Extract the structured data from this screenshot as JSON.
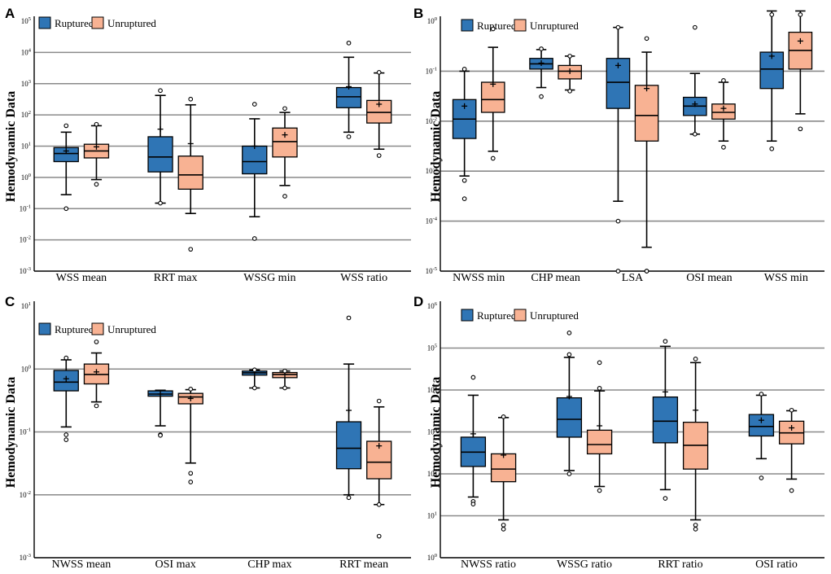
{
  "figure": {
    "colors": {
      "ruptured": "#2f75b5",
      "unruptured": "#f8b293"
    },
    "y_label": "Hemodynamic Data"
  },
  "chart_data": [
    {
      "type": "box",
      "panel": "A",
      "scale": "log10",
      "ylabel": "Hemodynamic Data",
      "y_ticks": [
        -3,
        -2,
        -1,
        0,
        1,
        2,
        3,
        4,
        5
      ],
      "legend": [
        "Ruptured",
        "Unruptured"
      ],
      "categories": [
        "WSS mean",
        "RRT max",
        "WSSG min",
        "WSS ratio"
      ],
      "series": [
        {
          "name": "Ruptured",
          "boxes": [
            {
              "min": 0.28,
              "q1": 3.2,
              "median": 5.8,
              "q3": 9,
              "max": 28,
              "mean": 7,
              "outliers": [
                0.1,
                45
              ]
            },
            {
              "min": 0.15,
              "q1": 1.5,
              "median": 4.5,
              "q3": 20,
              "max": 420,
              "mean": 35,
              "outliers": [
                0.15,
                600
              ]
            },
            {
              "min": 0.055,
              "q1": 1.3,
              "median": 3.2,
              "q3": 10,
              "max": 75,
              "mean": 10,
              "outliers": [
                0.011,
                220
              ]
            },
            {
              "min": 28,
              "q1": 170,
              "median": 380,
              "q3": 750,
              "max": 7000,
              "mean": 800,
              "outliers": [
                20,
                20000
              ]
            }
          ]
        },
        {
          "name": "Unruptured",
          "boxes": [
            {
              "min": 0.85,
              "q1": 4.2,
              "median": 7,
              "q3": 11.5,
              "max": 45,
              "mean": 9.5,
              "outliers": [
                0.6,
                50
              ]
            },
            {
              "min": 0.07,
              "q1": 0.42,
              "median": 1.2,
              "q3": 4.8,
              "max": 210,
              "mean": 12,
              "outliers": [
                0.005,
                320
              ]
            },
            {
              "min": 0.55,
              "q1": 4.5,
              "median": 14,
              "q3": 38,
              "max": 120,
              "mean": 23,
              "outliers": [
                0.25,
                160
              ]
            },
            {
              "min": 8,
              "q1": 55,
              "median": 120,
              "q3": 290,
              "max": 2200,
              "mean": 220,
              "outliers": [
                5,
                2300
              ]
            }
          ]
        }
      ]
    },
    {
      "type": "box",
      "panel": "B",
      "scale": "log10",
      "ylabel": "Hemodynamic Data",
      "y_ticks": [
        -5,
        -4,
        -3,
        -2,
        -1,
        0
      ],
      "legend": [
        "Ruptured",
        "Unruptured"
      ],
      "categories": [
        "NWSS min",
        "CHP mean",
        "LSA",
        "OSI mean",
        "WSS min"
      ],
      "series": [
        {
          "name": "Ruptured",
          "boxes": [
            {
              "min": 0.0008,
              "q1": 0.0045,
              "median": 0.011,
              "q3": 0.027,
              "max": 0.1,
              "mean": 0.02,
              "outliers": [
                0.00065,
                0.00028,
                0.11
              ]
            },
            {
              "min": 0.047,
              "q1": 0.11,
              "median": 0.14,
              "q3": 0.18,
              "max": 0.27,
              "mean": 0.145,
              "outliers": [
                0.031,
                0.28
              ]
            },
            {
              "min": 0.00025,
              "q1": 0.018,
              "median": 0.06,
              "q3": 0.18,
              "max": 0.75,
              "mean": 0.13,
              "outliers": [
                0.0001,
                1e-05,
                0.75
              ]
            },
            {
              "min": 0.0055,
              "q1": 0.013,
              "median": 0.02,
              "q3": 0.03,
              "max": 0.09,
              "mean": 0.022,
              "outliers": [
                0.0055,
                0.75
              ]
            },
            {
              "min": 0.004,
              "q1": 0.045,
              "median": 0.11,
              "q3": 0.24,
              "max": 1.6,
              "mean": 0.2,
              "outliers": [
                0.0028,
                1.6
              ]
            }
          ]
        },
        {
          "name": "Unruptured",
          "boxes": [
            {
              "min": 0.0025,
              "q1": 0.015,
              "median": 0.027,
              "q3": 0.06,
              "max": 0.3,
              "mean": 0.055,
              "outliers": [
                0.0018,
                0.7
              ]
            },
            {
              "min": 0.042,
              "q1": 0.07,
              "median": 0.1,
              "q3": 0.13,
              "max": 0.2,
              "mean": 0.1,
              "outliers": [
                0.04,
                0.2
              ]
            },
            {
              "min": 3e-05,
              "q1": 0.004,
              "median": 0.013,
              "q3": 0.052,
              "max": 0.24,
              "mean": 0.045,
              "outliers": [
                1e-05,
                1e-05,
                0.45
              ]
            },
            {
              "min": 0.004,
              "q1": 0.011,
              "median": 0.015,
              "q3": 0.022,
              "max": 0.06,
              "mean": 0.018,
              "outliers": [
                0.003,
                0.065
              ]
            },
            {
              "min": 0.014,
              "q1": 0.11,
              "median": 0.26,
              "q3": 0.6,
              "max": 1.6,
              "mean": 0.4,
              "outliers": [
                0.007,
                1.6
              ]
            }
          ]
        }
      ]
    },
    {
      "type": "box",
      "panel": "C",
      "scale": "log10",
      "ylabel": "Hemodynamic Data",
      "y_ticks": [
        -3,
        -2,
        -1,
        0,
        1
      ],
      "legend": [
        "Ruptured",
        "Unruptured"
      ],
      "categories": [
        "NWSS mean",
        "OSI max",
        "CHP max",
        "RRT mean"
      ],
      "series": [
        {
          "name": "Ruptured",
          "boxes": [
            {
              "min": 0.12,
              "q1": 0.45,
              "median": 0.62,
              "q3": 0.95,
              "max": 1.4,
              "mean": 0.7,
              "outliers": [
                0.09,
                0.075,
                1.5
              ]
            },
            {
              "min": 0.125,
              "q1": 0.37,
              "median": 0.4,
              "q3": 0.45,
              "max": 0.46,
              "mean": 0.4,
              "outliers": [
                0.09,
                0.088
              ]
            },
            {
              "min": 0.5,
              "q1": 0.8,
              "median": 0.87,
              "q3": 0.93,
              "max": 0.97,
              "mean": 0.87,
              "outliers": [
                0.5,
                0.97
              ]
            },
            {
              "min": 0.01,
              "q1": 0.026,
              "median": 0.055,
              "q3": 0.145,
              "max": 1.2,
              "mean": 0.22,
              "outliers": [
                0.009,
                6.5
              ]
            }
          ]
        },
        {
          "name": "Unruptured",
          "boxes": [
            {
              "min": 0.3,
              "q1": 0.58,
              "median": 0.82,
              "q3": 1.2,
              "max": 1.8,
              "mean": 0.9,
              "outliers": [
                0.26,
                2.7
              ]
            },
            {
              "min": 0.032,
              "q1": 0.28,
              "median": 0.36,
              "q3": 0.41,
              "max": 0.47,
              "mean": 0.34,
              "outliers": [
                0.022,
                0.016,
                0.48
              ]
            },
            {
              "min": 0.5,
              "q1": 0.73,
              "median": 0.82,
              "q3": 0.88,
              "max": 0.93,
              "mean": 0.82,
              "outliers": [
                0.5,
                0.93
              ]
            },
            {
              "min": 0.007,
              "q1": 0.018,
              "median": 0.033,
              "q3": 0.071,
              "max": 0.25,
              "mean": 0.06,
              "outliers": [
                0.007,
                0.0022,
                0.31
              ]
            }
          ]
        }
      ]
    },
    {
      "type": "box",
      "panel": "D",
      "scale": "log10",
      "ylabel": "Hemodynamic Data",
      "y_ticks": [
        0,
        1,
        2,
        3,
        4,
        5,
        6
      ],
      "legend": [
        "Ruptured",
        "Unruptured"
      ],
      "categories": [
        "NWSS ratio",
        "WSSG ratio",
        "RRT ratio",
        "OSI ratio"
      ],
      "series": [
        {
          "name": "Ruptured",
          "boxes": [
            {
              "min": 28,
              "q1": 150,
              "median": 330,
              "q3": 750,
              "max": 7500,
              "mean": 900,
              "outliers": [
                22,
                19,
                20000
              ]
            },
            {
              "min": 120,
              "q1": 750,
              "median": 2000,
              "q3": 6500,
              "max": 60000,
              "mean": 7000,
              "outliers": [
                100,
                230000,
                70000
              ]
            },
            {
              "min": 42,
              "q1": 550,
              "median": 1800,
              "q3": 6800,
              "max": 110000,
              "mean": 9000,
              "outliers": [
                26,
                145000
              ]
            },
            {
              "min": 230,
              "q1": 800,
              "median": 1350,
              "q3": 2600,
              "max": 7500,
              "mean": 1900,
              "outliers": [
                80,
                8000
              ]
            }
          ]
        },
        {
          "name": "Unruptured",
          "boxes": [
            {
              "min": 8,
              "q1": 65,
              "median": 130,
              "q3": 300,
              "max": 2200,
              "mean": 280,
              "outliers": [
                6,
                4.8,
                2300
              ]
            },
            {
              "min": 50,
              "q1": 300,
              "median": 500,
              "q3": 1100,
              "max": 9500,
              "mean": 1400,
              "outliers": [
                40,
                45000,
                11000
              ]
            },
            {
              "min": 8,
              "q1": 130,
              "median": 480,
              "q3": 1700,
              "max": 45000,
              "mean": 3300,
              "outliers": [
                6,
                4.8,
                55000
              ]
            },
            {
              "min": 75,
              "q1": 520,
              "median": 950,
              "q3": 1800,
              "max": 3200,
              "mean": 1250,
              "outliers": [
                40,
                3300
              ]
            }
          ]
        }
      ]
    }
  ]
}
